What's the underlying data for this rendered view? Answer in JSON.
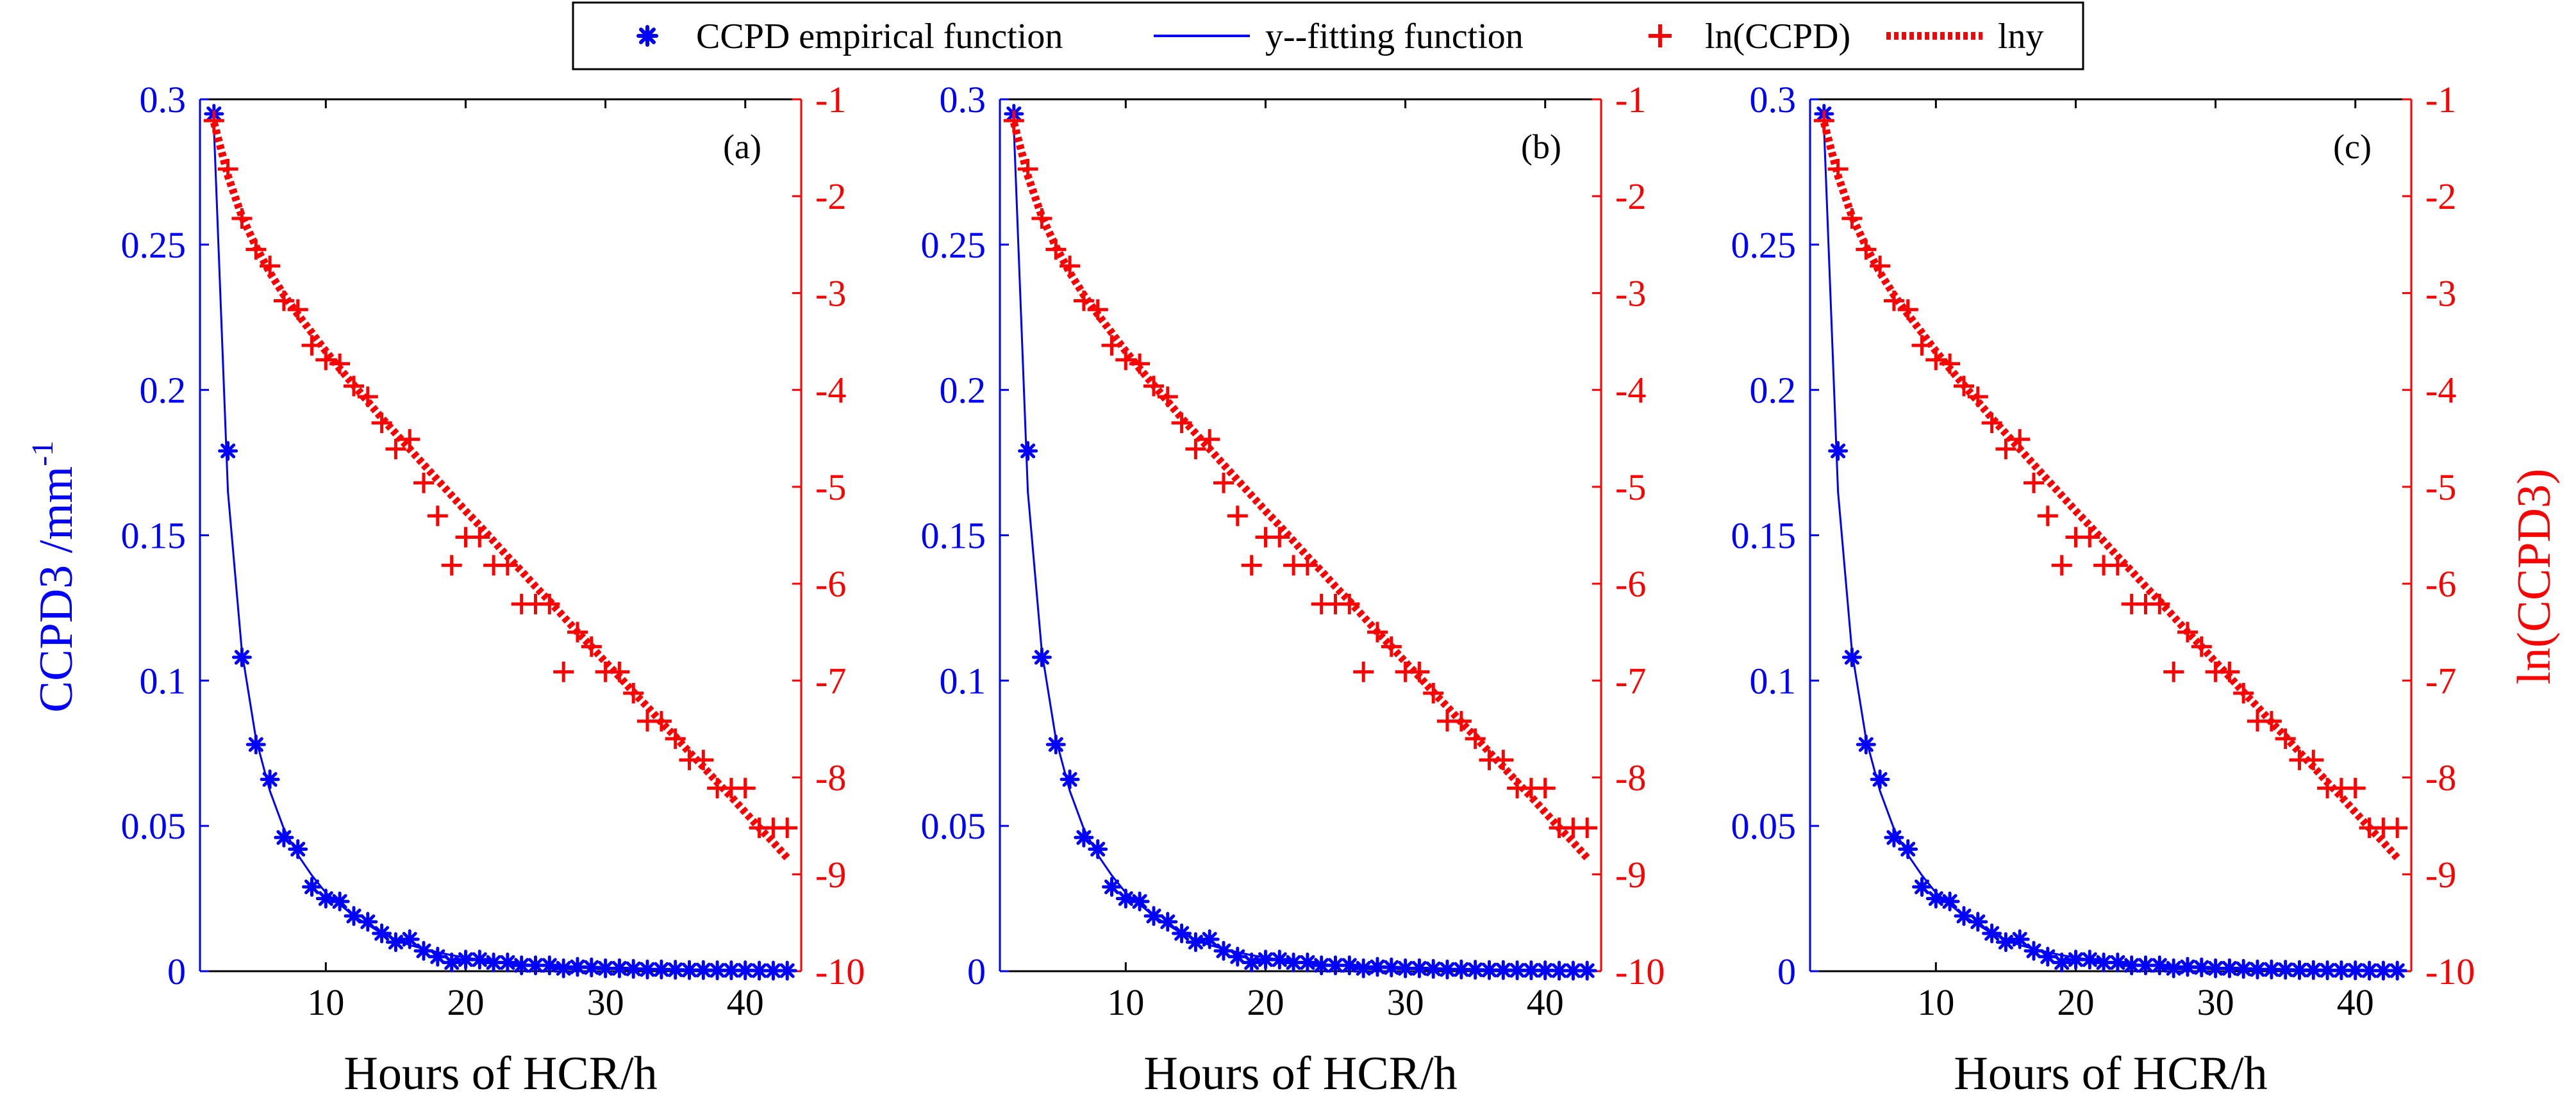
{
  "colors": {
    "left": "#0000ff",
    "right": "#ff0000",
    "axes": "#000000",
    "background": "#ffffff"
  },
  "legend": {
    "items": [
      {
        "label": "CCPD empirical function",
        "marker": "asterisk",
        "color": "#0000ff"
      },
      {
        "label": "y--fitting function",
        "marker": "solid-line",
        "color": "#0000ff"
      },
      {
        "label": "ln(CCPD)",
        "marker": "plus",
        "color": "#ff0000"
      },
      {
        "label": "lny",
        "marker": "dotted-line",
        "color": "#ff0000"
      }
    ]
  },
  "axis_text": {
    "xlabel": "Hours of HCR/h",
    "ylabel_left_base": "CCPD3 /mm",
    "ylabel_left_sup": "-1",
    "ylabel_right": "ln(CCPD3)"
  },
  "chart_data": {
    "type": "scatter",
    "title": "",
    "xlabel": "Hours of HCR/h",
    "ylabel_left": "CCPD3 /mm-1",
    "ylabel_right": "ln(CCPD3)",
    "xlim": [
      1,
      44
    ],
    "ylim_left": [
      0,
      0.3
    ],
    "ylim_right": [
      -10,
      -1
    ],
    "x_ticks": [
      10,
      20,
      30,
      40
    ],
    "y_left_ticks": [
      0,
      0.05,
      0.1,
      0.15,
      0.2,
      0.25,
      0.3
    ],
    "y_left_tick_labels": [
      "0",
      "0.05",
      "0.1",
      "0.15",
      "0.2",
      "0.25",
      "0.3"
    ],
    "y_right_ticks": [
      -10,
      -9,
      -8,
      -7,
      -6,
      -5,
      -4,
      -3,
      -2,
      -1
    ],
    "legend_position": "top",
    "panels": [
      {
        "label": "(a)"
      },
      {
        "label": "(b)"
      },
      {
        "label": "(c)"
      }
    ],
    "series": [
      {
        "name": "CCPD empirical function",
        "axis": "left",
        "style": "asterisk",
        "x": [
          2,
          3,
          4,
          5,
          6,
          7,
          8,
          9,
          10,
          11,
          12,
          13,
          14,
          15,
          16,
          17,
          18,
          19,
          20,
          21,
          22,
          23,
          24,
          25,
          26,
          27,
          28,
          29,
          30,
          31,
          32,
          33,
          34,
          35,
          36,
          37,
          38,
          39,
          40,
          41,
          42,
          43
        ],
        "y": [
          0.295,
          0.179,
          0.108,
          0.078,
          0.066,
          0.046,
          0.042,
          0.029,
          0.025,
          0.024,
          0.019,
          0.017,
          0.013,
          0.01,
          0.011,
          0.007,
          0.005,
          0.003,
          0.004,
          0.004,
          0.003,
          0.003,
          0.002,
          0.002,
          0.002,
          0.001,
          0.0015,
          0.0013,
          0.001,
          0.001,
          0.0008,
          0.0006,
          0.0006,
          0.0005,
          0.0004,
          0.0004,
          0.0003,
          0.0003,
          0.0003,
          0.0002,
          0.0002,
          0.0002
        ]
      },
      {
        "name": "y--fitting function",
        "axis": "left",
        "style": "solid-line",
        "x": [
          2,
          3,
          4,
          5,
          6,
          7,
          8,
          9,
          10,
          11,
          12,
          13,
          14,
          15,
          16,
          17,
          18,
          19,
          20,
          21,
          22,
          23,
          24,
          25,
          26,
          27,
          28,
          29,
          30,
          31,
          32,
          33,
          34,
          35,
          36,
          37,
          38,
          39,
          40,
          41,
          42,
          43
        ],
        "y": [
          0.29,
          0.165,
          0.11,
          0.08,
          0.062,
          0.049,
          0.04,
          0.033,
          0.027,
          0.023,
          0.019,
          0.016,
          0.013,
          0.011,
          0.009,
          0.0077,
          0.0065,
          0.0055,
          0.0047,
          0.004,
          0.0034,
          0.0029,
          0.0025,
          0.0021,
          0.0018,
          0.0015,
          0.0013,
          0.0011,
          0.001,
          0.0008,
          0.0007,
          0.0006,
          0.0005,
          0.0004,
          0.0004,
          0.0003,
          0.0003,
          0.0002,
          0.0002,
          0.0002,
          0.0002,
          0.0001
        ]
      },
      {
        "name": "ln(CCPD)",
        "axis": "right",
        "style": "plus",
        "x": [
          2,
          3,
          4,
          5,
          6,
          7,
          8,
          9,
          10,
          11,
          12,
          13,
          14,
          15,
          16,
          17,
          18,
          19,
          20,
          21,
          22,
          23,
          24,
          25,
          26,
          27,
          28,
          29,
          30,
          31,
          32,
          33,
          34,
          35,
          36,
          37,
          38,
          39,
          40,
          41,
          42,
          43
        ],
        "y": [
          -1.22,
          -1.72,
          -2.23,
          -2.55,
          -2.72,
          -3.08,
          -3.17,
          -3.54,
          -3.69,
          -3.73,
          -3.96,
          -4.07,
          -4.34,
          -4.61,
          -4.51,
          -4.96,
          -5.3,
          -5.81,
          -5.52,
          -5.52,
          -5.81,
          -5.81,
          -6.21,
          -6.21,
          -6.21,
          -6.91,
          -6.5,
          -6.65,
          -6.91,
          -6.91,
          -7.13,
          -7.42,
          -7.42,
          -7.6,
          -7.82,
          -7.82,
          -8.11,
          -8.11,
          -8.11,
          -8.52,
          -8.52,
          -8.52
        ]
      },
      {
        "name": "lny",
        "axis": "right",
        "style": "dotted-line",
        "x": [
          2,
          3,
          4,
          5,
          6,
          7,
          8,
          9,
          10,
          11,
          12,
          13,
          14,
          15,
          16,
          17,
          18,
          19,
          20,
          21,
          22,
          23,
          24,
          25,
          26,
          27,
          28,
          29,
          30,
          31,
          32,
          33,
          34,
          35,
          36,
          37,
          38,
          39,
          40,
          41,
          42,
          43
        ],
        "y": [
          -1.24,
          -1.79,
          -2.21,
          -2.52,
          -2.79,
          -3.02,
          -3.22,
          -3.41,
          -3.6,
          -3.78,
          -3.95,
          -4.12,
          -4.29,
          -4.45,
          -4.61,
          -4.77,
          -4.93,
          -5.09,
          -5.25,
          -5.4,
          -5.56,
          -5.72,
          -5.87,
          -6.03,
          -6.18,
          -6.34,
          -6.5,
          -6.65,
          -6.81,
          -6.96,
          -7.12,
          -7.27,
          -7.43,
          -7.58,
          -7.74,
          -7.89,
          -8.05,
          -8.2,
          -8.36,
          -8.52,
          -8.67,
          -8.83
        ]
      }
    ]
  }
}
